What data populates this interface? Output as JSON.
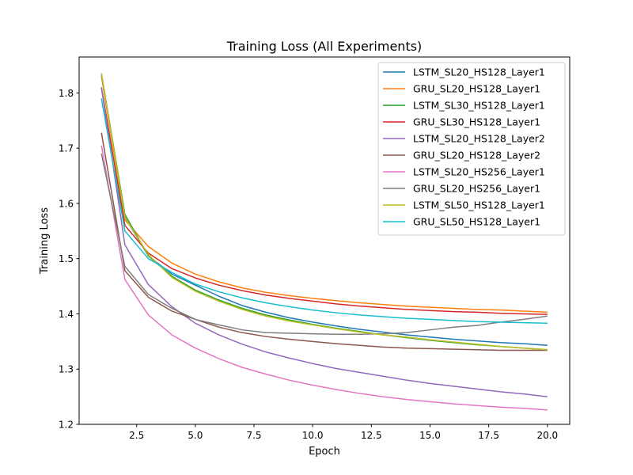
{
  "chart_data": {
    "type": "line",
    "title": "Training Loss (All Experiments)",
    "xlabel": "Epoch",
    "ylabel": "Training Loss",
    "xlim": [
      0.05,
      20.95
    ],
    "ylim": [
      1.2,
      1.865
    ],
    "xticks": [
      2.5,
      5.0,
      7.5,
      10.0,
      12.5,
      15.0,
      17.5,
      20.0
    ],
    "xtick_labels": [
      "2.5",
      "5.0",
      "7.5",
      "10.0",
      "12.5",
      "15.0",
      "17.5",
      "20.0"
    ],
    "yticks": [
      1.2,
      1.3,
      1.4,
      1.5,
      1.6,
      1.7,
      1.8
    ],
    "ytick_labels": [
      "1.2",
      "1.3",
      "1.4",
      "1.5",
      "1.6",
      "1.7",
      "1.8"
    ],
    "grid": false,
    "legend_position": "top-right",
    "x": [
      1,
      2,
      3,
      4,
      5,
      6,
      7,
      8,
      9,
      10,
      11,
      12,
      13,
      14,
      15,
      16,
      17,
      18,
      19,
      20
    ],
    "series": [
      {
        "name": "LSTM_SL20_HS128_Layer1",
        "color": "#1f77b4",
        "values": [
          1.835,
          1.575,
          1.505,
          1.472,
          1.452,
          1.432,
          1.415,
          1.403,
          1.393,
          1.385,
          1.378,
          1.372,
          1.367,
          1.362,
          1.358,
          1.354,
          1.351,
          1.348,
          1.346,
          1.343
        ]
      },
      {
        "name": "GRU_SL20_HS128_Layer1",
        "color": "#ff7f0e",
        "values": [
          1.83,
          1.57,
          1.522,
          1.492,
          1.472,
          1.458,
          1.447,
          1.439,
          1.433,
          1.428,
          1.424,
          1.42,
          1.417,
          1.414,
          1.412,
          1.41,
          1.408,
          1.407,
          1.405,
          1.403
        ]
      },
      {
        "name": "LSTM_SL30_HS128_Layer1",
        "color": "#2ca02c",
        "values": [
          1.835,
          1.58,
          1.505,
          1.468,
          1.443,
          1.425,
          1.41,
          1.398,
          1.389,
          1.381,
          1.374,
          1.368,
          1.362,
          1.357,
          1.352,
          1.348,
          1.344,
          1.341,
          1.338,
          1.335
        ]
      },
      {
        "name": "GRU_SL30_HS128_Layer1",
        "color": "#d62728",
        "values": [
          1.81,
          1.56,
          1.51,
          1.482,
          1.465,
          1.452,
          1.442,
          1.434,
          1.428,
          1.423,
          1.418,
          1.414,
          1.411,
          1.408,
          1.406,
          1.404,
          1.403,
          1.401,
          1.4,
          1.399
        ]
      },
      {
        "name": "LSTM_SL20_HS128_Layer2",
        "color": "#9467bd",
        "values": [
          1.81,
          1.525,
          1.453,
          1.413,
          1.383,
          1.362,
          1.345,
          1.331,
          1.32,
          1.31,
          1.301,
          1.294,
          1.287,
          1.28,
          1.274,
          1.269,
          1.264,
          1.259,
          1.255,
          1.25
        ]
      },
      {
        "name": "GRU_SL20_HS128_Layer2",
        "color": "#8c564b",
        "values": [
          1.728,
          1.478,
          1.43,
          1.405,
          1.39,
          1.376,
          1.366,
          1.359,
          1.354,
          1.35,
          1.346,
          1.343,
          1.34,
          1.338,
          1.337,
          1.336,
          1.335,
          1.334,
          1.334,
          1.334
        ]
      },
      {
        "name": "LSTM_SL20_HS256_Layer1",
        "color": "#e377c2",
        "values": [
          1.705,
          1.462,
          1.398,
          1.362,
          1.338,
          1.319,
          1.303,
          1.291,
          1.28,
          1.271,
          1.263,
          1.256,
          1.25,
          1.245,
          1.241,
          1.237,
          1.234,
          1.231,
          1.229,
          1.226
        ]
      },
      {
        "name": "GRU_SL20_HS256_Layer1",
        "color": "#7f7f7f",
        "values": [
          1.69,
          1.486,
          1.435,
          1.41,
          1.39,
          1.38,
          1.371,
          1.366,
          1.365,
          1.364,
          1.363,
          1.363,
          1.364,
          1.366,
          1.371,
          1.376,
          1.379,
          1.385,
          1.39,
          1.396
        ]
      },
      {
        "name": "LSTM_SL50_HS128_Layer1",
        "color": "#bcbd22",
        "values": [
          1.835,
          1.575,
          1.507,
          1.466,
          1.441,
          1.423,
          1.408,
          1.396,
          1.387,
          1.38,
          1.373,
          1.367,
          1.362,
          1.358,
          1.353,
          1.349,
          1.345,
          1.341,
          1.338,
          1.335
        ]
      },
      {
        "name": "GRU_SL50_HS128_Layer1",
        "color": "#17becf",
        "values": [
          1.79,
          1.55,
          1.5,
          1.475,
          1.454,
          1.44,
          1.429,
          1.42,
          1.413,
          1.407,
          1.402,
          1.398,
          1.395,
          1.392,
          1.39,
          1.388,
          1.386,
          1.385,
          1.384,
          1.383
        ]
      }
    ]
  }
}
